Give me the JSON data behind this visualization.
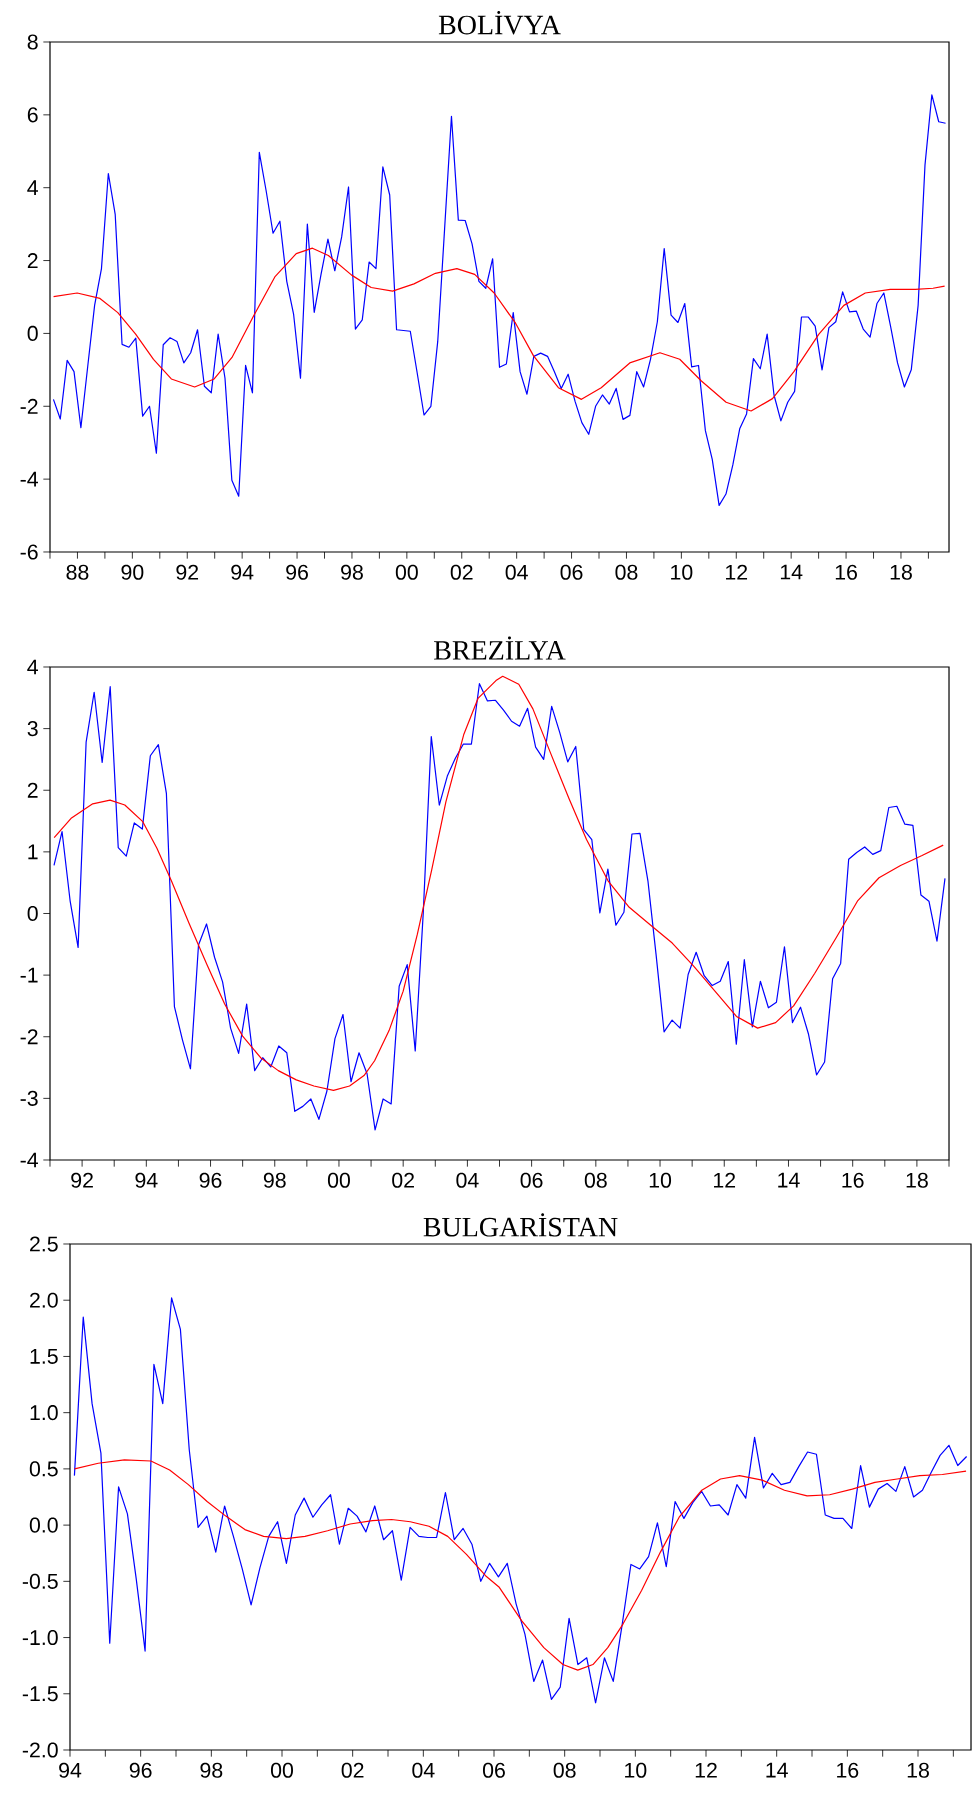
{
  "chart_data": [
    {
      "type": "line",
      "title": "BOLİVYA",
      "x": [
        1987.125,
        1987.375,
        1987.625,
        1987.875,
        1988.125,
        1988.375,
        1988.625,
        1988.875,
        1989.125,
        1989.375,
        1989.625,
        1989.875,
        1990.125,
        1990.375,
        1990.625,
        1990.875,
        1991.125,
        1991.375,
        1991.625,
        1991.875,
        1992.125,
        1992.375,
        1992.625,
        1992.875,
        1993.125,
        1993.375,
        1993.625,
        1993.875,
        1994.125,
        1994.375,
        1994.625,
        1994.875,
        1995.125,
        1995.375,
        1995.625,
        1995.875,
        1996.125,
        1996.375,
        1996.625,
        1996.875,
        1997.125,
        1997.375,
        1997.625,
        1997.875,
        1998.125,
        1998.375,
        1998.625,
        1998.875,
        1999.125,
        1999.375,
        1999.625,
        1999.875,
        2000.125,
        2000.375,
        2000.625,
        2000.875,
        2001.125,
        2001.375,
        2001.625,
        2001.875,
        2002.125,
        2002.375,
        2002.625,
        2002.875,
        2003.125,
        2003.375,
        2003.625,
        2003.875,
        2004.125,
        2004.375,
        2004.625,
        2004.875,
        2005.125,
        2005.375,
        2005.625,
        2005.875,
        2006.125,
        2006.375,
        2006.625,
        2006.875,
        2007.125,
        2007.375,
        2007.625,
        2007.875,
        2008.125,
        2008.375,
        2008.625,
        2008.875,
        2009.125,
        2009.375,
        2009.625,
        2009.875,
        2010.125,
        2010.375,
        2010.625,
        2010.875,
        2011.125,
        2011.375,
        2011.625,
        2011.875,
        2012.125,
        2012.375,
        2012.625,
        2012.875,
        2013.125,
        2013.375,
        2013.625,
        2013.875,
        2014.125,
        2014.375,
        2014.625,
        2014.875,
        2015.125,
        2015.375,
        2015.625,
        2015.875,
        2016.125,
        2016.375,
        2016.625,
        2016.875,
        2017.125,
        2017.375,
        2017.625,
        2017.875,
        2018.125,
        2018.375,
        2018.625,
        2018.875,
        2019.125,
        2019.375,
        2019.625
      ],
      "xlim": [
        1987,
        2019.75
      ],
      "ylim": [
        -6,
        8
      ],
      "xticks": [
        {
          "value": 1987,
          "label": null
        },
        {
          "value": 1988,
          "label": "88"
        },
        {
          "value": 1989,
          "label": null
        },
        {
          "value": 1990,
          "label": "90"
        },
        {
          "value": 1991,
          "label": null
        },
        {
          "value": 1992,
          "label": "92"
        },
        {
          "value": 1993,
          "label": null
        },
        {
          "value": 1994,
          "label": "94"
        },
        {
          "value": 1995,
          "label": null
        },
        {
          "value": 1996,
          "label": "96"
        },
        {
          "value": 1997,
          "label": null
        },
        {
          "value": 1998,
          "label": "98"
        },
        {
          "value": 1999,
          "label": null
        },
        {
          "value": 2000,
          "label": "00"
        },
        {
          "value": 2001,
          "label": null
        },
        {
          "value": 2002,
          "label": "02"
        },
        {
          "value": 2003,
          "label": null
        },
        {
          "value": 2004,
          "label": "04"
        },
        {
          "value": 2005,
          "label": null
        },
        {
          "value": 2006,
          "label": "06"
        },
        {
          "value": 2007,
          "label": null
        },
        {
          "value": 2008,
          "label": "08"
        },
        {
          "value": 2009,
          "label": null
        },
        {
          "value": 2010,
          "label": "10"
        },
        {
          "value": 2011,
          "label": null
        },
        {
          "value": 2012,
          "label": "12"
        },
        {
          "value": 2013,
          "label": null
        },
        {
          "value": 2014,
          "label": "14"
        },
        {
          "value": 2015,
          "label": null
        },
        {
          "value": 2016,
          "label": "16"
        },
        {
          "value": 2017,
          "label": null
        },
        {
          "value": 2018,
          "label": "18"
        },
        {
          "value": 2019,
          "label": null
        }
      ],
      "yticks": [
        -6,
        -4,
        -2,
        0,
        2,
        4,
        6,
        8
      ],
      "series": [
        {
          "color": "#0000ff",
          "values": [
            -1.81,
            -2.35,
            -0.74,
            -1.05,
            -2.59,
            -0.9,
            0.77,
            1.78,
            4.39,
            3.27,
            -0.3,
            -0.38,
            -0.13,
            -2.27,
            -2.0,
            -3.29,
            -0.31,
            -0.12,
            -0.22,
            -0.81,
            -0.53,
            0.1,
            -1.45,
            -1.63,
            -0.02,
            -1.23,
            -4.03,
            -4.47,
            -0.88,
            -1.63,
            4.97,
            3.91,
            2.75,
            3.08,
            1.43,
            0.52,
            -1.23,
            3.0,
            0.58,
            1.63,
            2.59,
            1.72,
            2.65,
            4.02,
            0.12,
            0.37,
            1.96,
            1.78,
            4.57,
            3.8,
            0.1,
            0.08,
            0.06,
            -1.08,
            -2.24,
            -2.0,
            -0.22,
            2.87,
            5.96,
            3.11,
            3.1,
            2.46,
            1.43,
            1.24,
            2.05,
            -0.93,
            -0.84,
            0.57,
            -1.05,
            -1.67,
            -0.63,
            -0.54,
            -0.63,
            -1.05,
            -1.51,
            -1.12,
            -1.86,
            -2.45,
            -2.77,
            -2.0,
            -1.69,
            -1.94,
            -1.51,
            -2.36,
            -2.25,
            -1.05,
            -1.47,
            -0.71,
            0.32,
            2.33,
            0.5,
            0.3,
            0.82,
            -0.92,
            -0.88,
            -2.67,
            -3.46,
            -4.72,
            -4.41,
            -3.61,
            -2.62,
            -2.21,
            -0.69,
            -0.97,
            -0.02,
            -1.69,
            -2.4,
            -1.89,
            -1.59,
            0.45,
            0.45,
            0.2,
            -1.0,
            0.16,
            0.32,
            1.14,
            0.59,
            0.61,
            0.12,
            -0.1,
            0.82,
            1.11,
            0.18,
            -0.81,
            -1.47,
            -1.0,
            0.77,
            4.62,
            6.55,
            5.81,
            5.77
          ]
        },
        {
          "color": "#ff0000",
          "x": [
            1987.13,
            1987.99,
            1988.82,
            1989.47,
            1990.12,
            1990.77,
            1991.42,
            1992.27,
            1992.98,
            1993.63,
            1994.41,
            1995.19,
            1995.97,
            1996.56,
            1997.14,
            1997.99,
            1998.7,
            1999.48,
            2000.26,
            2001.04,
            2001.82,
            2002.47,
            2003.18,
            2003.96,
            2004.61,
            2005.52,
            2006.36,
            2007.08,
            2008.12,
            2009.22,
            2009.94,
            2010.72,
            2011.63,
            2012.54,
            2013.32,
            2014.1,
            2015.01,
            2015.92,
            2016.7,
            2017.61,
            2018.52,
            2019.17,
            2019.59
          ],
          "values": [
            1.01,
            1.11,
            0.96,
            0.57,
            -0.02,
            -0.71,
            -1.25,
            -1.47,
            -1.25,
            -0.66,
            0.47,
            1.55,
            2.19,
            2.34,
            2.14,
            1.6,
            1.26,
            1.16,
            1.36,
            1.65,
            1.78,
            1.62,
            1.11,
            0.28,
            -0.61,
            -1.49,
            -1.81,
            -1.49,
            -0.81,
            -0.53,
            -0.71,
            -1.3,
            -1.89,
            -2.13,
            -1.79,
            -1.05,
            -0.02,
            0.77,
            1.11,
            1.21,
            1.21,
            1.24,
            1.3
          ]
        }
      ]
    },
    {
      "type": "line",
      "title": "BREZİLYA",
      "x": [
        1991.125,
        1991.375,
        1991.625,
        1991.875,
        1992.125,
        1992.375,
        1992.625,
        1992.875,
        1993.125,
        1993.375,
        1993.625,
        1993.875,
        1994.125,
        1994.375,
        1994.625,
        1994.875,
        1995.125,
        1995.375,
        1995.625,
        1995.875,
        1996.125,
        1996.375,
        1996.625,
        1996.875,
        1997.125,
        1997.375,
        1997.625,
        1997.875,
        1998.125,
        1998.375,
        1998.625,
        1998.875,
        1999.125,
        1999.375,
        1999.625,
        1999.875,
        2000.125,
        2000.375,
        2000.625,
        2000.875,
        2001.125,
        2001.375,
        2001.625,
        2001.875,
        2002.125,
        2002.375,
        2002.625,
        2002.875,
        2003.125,
        2003.375,
        2003.625,
        2003.875,
        2004.125,
        2004.375,
        2004.625,
        2004.875,
        2005.125,
        2005.375,
        2005.625,
        2005.875,
        2006.125,
        2006.375,
        2006.625,
        2006.875,
        2007.125,
        2007.375,
        2007.625,
        2007.875,
        2008.125,
        2008.375,
        2008.625,
        2008.875,
        2009.125,
        2009.375,
        2009.625,
        2009.875,
        2010.125,
        2010.375,
        2010.625,
        2010.875,
        2011.125,
        2011.375,
        2011.625,
        2011.875,
        2012.125,
        2012.375,
        2012.625,
        2012.875,
        2013.125,
        2013.375,
        2013.625,
        2013.875,
        2014.125,
        2014.375,
        2014.625,
        2014.875,
        2015.125,
        2015.375,
        2015.625,
        2015.875,
        2016.125,
        2016.375,
        2016.625,
        2016.875,
        2017.125,
        2017.375,
        2017.625,
        2017.875,
        2018.125,
        2018.375,
        2018.625,
        2018.875
      ],
      "xlim": [
        1991,
        2019
      ],
      "ylim": [
        -4,
        4
      ],
      "xticks": [
        {
          "value": 1991,
          "label": null
        },
        {
          "value": 1992,
          "label": "92"
        },
        {
          "value": 1993,
          "label": null
        },
        {
          "value": 1994,
          "label": "94"
        },
        {
          "value": 1995,
          "label": null
        },
        {
          "value": 1996,
          "label": "96"
        },
        {
          "value": 1997,
          "label": null
        },
        {
          "value": 1998,
          "label": "98"
        },
        {
          "value": 1999,
          "label": null
        },
        {
          "value": 2000,
          "label": "00"
        },
        {
          "value": 2001,
          "label": null
        },
        {
          "value": 2002,
          "label": "02"
        },
        {
          "value": 2003,
          "label": null
        },
        {
          "value": 2004,
          "label": "04"
        },
        {
          "value": 2005,
          "label": null
        },
        {
          "value": 2006,
          "label": "06"
        },
        {
          "value": 2007,
          "label": null
        },
        {
          "value": 2008,
          "label": "08"
        },
        {
          "value": 2009,
          "label": null
        },
        {
          "value": 2010,
          "label": "10"
        },
        {
          "value": 2011,
          "label": null
        },
        {
          "value": 2012,
          "label": "12"
        },
        {
          "value": 2013,
          "label": null
        },
        {
          "value": 2014,
          "label": "14"
        },
        {
          "value": 2015,
          "label": null
        },
        {
          "value": 2016,
          "label": "16"
        },
        {
          "value": 2017,
          "label": null
        },
        {
          "value": 2018,
          "label": "18"
        },
        {
          "value": 2019,
          "label": null
        }
      ],
      "yticks": [
        -4,
        -3,
        -2,
        -1,
        0,
        1,
        2,
        3,
        4
      ],
      "series": [
        {
          "color": "#0000ff",
          "values": [
            0.78,
            1.33,
            0.21,
            -0.55,
            2.78,
            3.59,
            2.45,
            3.68,
            1.07,
            0.93,
            1.47,
            1.37,
            2.56,
            2.74,
            1.95,
            -1.51,
            -2.05,
            -2.52,
            -0.51,
            -0.17,
            -0.71,
            -1.11,
            -1.86,
            -2.27,
            -1.47,
            -2.55,
            -2.34,
            -2.49,
            -2.15,
            -2.26,
            -3.21,
            -3.13,
            -3.01,
            -3.34,
            -2.88,
            -2.03,
            -1.64,
            -2.73,
            -2.26,
            -2.6,
            -3.51,
            -3.01,
            -3.09,
            -1.18,
            -0.83,
            -2.23,
            0.01,
            2.87,
            1.76,
            2.23,
            2.52,
            2.75,
            2.75,
            3.73,
            3.45,
            3.46,
            3.3,
            3.12,
            3.04,
            3.33,
            2.7,
            2.5,
            3.36,
            2.94,
            2.46,
            2.71,
            1.36,
            1.2,
            0.01,
            0.72,
            -0.19,
            0.02,
            1.29,
            1.3,
            0.52,
            -0.66,
            -1.92,
            -1.73,
            -1.86,
            -0.99,
            -0.63,
            -1.01,
            -1.17,
            -1.1,
            -0.78,
            -2.12,
            -0.75,
            -1.84,
            -1.1,
            -1.53,
            -1.44,
            -0.54,
            -1.77,
            -1.52,
            -1.96,
            -2.62,
            -2.41,
            -1.06,
            -0.81,
            0.88,
            0.99,
            1.08,
            0.96,
            1.02,
            1.72,
            1.74,
            1.45,
            1.43,
            0.3,
            0.2,
            -0.45,
            0.57
          ]
        },
        {
          "color": "#ff0000",
          "x": [
            1991.13,
            1991.67,
            1992.33,
            1992.87,
            1993.33,
            1993.89,
            1994.33,
            1994.78,
            1995.33,
            1995.89,
            1996.44,
            1997.0,
            1997.56,
            1998.11,
            1998.67,
            1999.22,
            1999.83,
            2000.33,
            2000.78,
            2001.11,
            2001.56,
            2002.0,
            2002.44,
            2002.89,
            2003.33,
            2003.89,
            2004.33,
            2004.89,
            2005.1,
            2005.6,
            2006.04,
            2006.6,
            2007.16,
            2007.71,
            2008.38,
            2009.04,
            2009.71,
            2010.38,
            2011.04,
            2011.71,
            2012.38,
            2013.04,
            2013.6,
            2014.16,
            2014.82,
            2015.49,
            2016.16,
            2016.82,
            2017.49,
            2018.16,
            2018.82
          ],
          "values": [
            1.23,
            1.55,
            1.78,
            1.84,
            1.76,
            1.49,
            1.06,
            0.53,
            -0.16,
            -0.83,
            -1.47,
            -1.99,
            -2.34,
            -2.55,
            -2.7,
            -2.8,
            -2.87,
            -2.8,
            -2.63,
            -2.39,
            -1.9,
            -1.26,
            -0.34,
            0.71,
            1.81,
            2.91,
            3.49,
            3.78,
            3.85,
            3.72,
            3.32,
            2.59,
            1.87,
            1.2,
            0.53,
            0.1,
            -0.19,
            -0.48,
            -0.85,
            -1.26,
            -1.67,
            -1.86,
            -1.77,
            -1.5,
            -0.97,
            -0.39,
            0.21,
            0.58,
            0.78,
            0.94,
            1.11
          ]
        }
      ]
    },
    {
      "type": "line",
      "title": "BULGARİSTAN",
      "x": [
        1994.125,
        1994.375,
        1994.625,
        1994.875,
        1995.125,
        1995.375,
        1995.625,
        1995.875,
        1996.125,
        1996.375,
        1996.625,
        1996.875,
        1997.125,
        1997.375,
        1997.625,
        1997.875,
        1998.125,
        1998.375,
        1998.625,
        1998.875,
        1999.125,
        1999.375,
        1999.625,
        1999.875,
        2000.125,
        2000.375,
        2000.625,
        2000.875,
        2001.125,
        2001.375,
        2001.625,
        2001.875,
        2002.125,
        2002.375,
        2002.625,
        2002.875,
        2003.125,
        2003.375,
        2003.625,
        2003.875,
        2004.125,
        2004.375,
        2004.625,
        2004.875,
        2005.125,
        2005.375,
        2005.625,
        2005.875,
        2006.125,
        2006.375,
        2006.625,
        2006.875,
        2007.125,
        2007.375,
        2007.625,
        2007.875,
        2008.125,
        2008.375,
        2008.625,
        2008.875,
        2009.125,
        2009.375,
        2009.625,
        2009.875,
        2010.125,
        2010.375,
        2010.625,
        2010.875,
        2011.125,
        2011.375,
        2011.625,
        2011.875,
        2012.125,
        2012.375,
        2012.625,
        2012.875,
        2013.125,
        2013.375,
        2013.625,
        2013.875,
        2014.125,
        2014.375,
        2014.625,
        2014.875,
        2015.125,
        2015.375,
        2015.625,
        2015.875,
        2016.125,
        2016.375,
        2016.625,
        2016.875,
        2017.125,
        2017.375,
        2017.625,
        2017.875,
        2018.125,
        2018.375,
        2018.625,
        2018.875,
        2019.125,
        2019.375
      ],
      "xlim": [
        1994,
        2019.5
      ],
      "ylim": [
        -2,
        2.5
      ],
      "xticks": [
        {
          "value": 1994,
          "label": "94"
        },
        {
          "value": 1995,
          "label": null
        },
        {
          "value": 1996,
          "label": "96"
        },
        {
          "value": 1997,
          "label": null
        },
        {
          "value": 1998,
          "label": "98"
        },
        {
          "value": 1999,
          "label": null
        },
        {
          "value": 2000,
          "label": "00"
        },
        {
          "value": 2001,
          "label": null
        },
        {
          "value": 2002,
          "label": "02"
        },
        {
          "value": 2003,
          "label": null
        },
        {
          "value": 2004,
          "label": "04"
        },
        {
          "value": 2005,
          "label": null
        },
        {
          "value": 2006,
          "label": "06"
        },
        {
          "value": 2007,
          "label": null
        },
        {
          "value": 2008,
          "label": "08"
        },
        {
          "value": 2009,
          "label": null
        },
        {
          "value": 2010,
          "label": "10"
        },
        {
          "value": 2011,
          "label": null
        },
        {
          "value": 2012,
          "label": "12"
        },
        {
          "value": 2013,
          "label": null
        },
        {
          "value": 2014,
          "label": "14"
        },
        {
          "value": 2015,
          "label": null
        },
        {
          "value": 2016,
          "label": "16"
        },
        {
          "value": 2017,
          "label": null
        },
        {
          "value": 2018,
          "label": "18"
        },
        {
          "value": 2019,
          "label": null
        }
      ],
      "yticks": [
        {
          "value": -2,
          "label": "-2.0"
        },
        -1.5,
        {
          "value": -1,
          "label": "-1.0"
        },
        -0.5,
        {
          "value": 0,
          "label": "0.0"
        },
        0.5,
        {
          "value": 1,
          "label": "1.0"
        },
        1.5,
        {
          "value": 2,
          "label": "2.0"
        },
        2.5
      ],
      "series": [
        {
          "color": "#0000ff",
          "values": [
            0.44,
            1.85,
            1.08,
            0.64,
            -1.05,
            0.34,
            0.1,
            -0.48,
            -1.12,
            1.43,
            1.08,
            2.02,
            1.74,
            0.67,
            -0.02,
            0.08,
            -0.24,
            0.17,
            -0.1,
            -0.39,
            -0.71,
            -0.38,
            -0.1,
            0.03,
            -0.34,
            0.09,
            0.24,
            0.07,
            0.18,
            0.27,
            -0.17,
            0.15,
            0.08,
            -0.06,
            0.17,
            -0.13,
            -0.05,
            -0.49,
            -0.02,
            -0.1,
            -0.11,
            -0.11,
            0.29,
            -0.13,
            -0.03,
            -0.17,
            -0.5,
            -0.34,
            -0.46,
            -0.34,
            -0.7,
            -0.97,
            -1.39,
            -1.2,
            -1.55,
            -1.44,
            -0.83,
            -1.24,
            -1.18,
            -1.58,
            -1.18,
            -1.39,
            -0.89,
            -0.35,
            -0.39,
            -0.28,
            0.02,
            -0.37,
            0.21,
            0.06,
            0.2,
            0.3,
            0.17,
            0.18,
            0.09,
            0.36,
            0.24,
            0.78,
            0.33,
            0.46,
            0.36,
            0.38,
            0.52,
            0.65,
            0.63,
            0.09,
            0.06,
            0.06,
            -0.03,
            0.53,
            0.16,
            0.32,
            0.37,
            0.3,
            0.52,
            0.25,
            0.31,
            0.47,
            0.62,
            0.71,
            0.53,
            0.61
          ]
        },
        {
          "color": "#ff0000",
          "x": [
            1994.13,
            1994.8,
            1995.54,
            1996.29,
            1996.82,
            1997.35,
            1997.88,
            1998.41,
            1998.95,
            1999.48,
            2000.12,
            2000.65,
            2001.29,
            2001.93,
            2002.56,
            2003.1,
            2003.63,
            2004.16,
            2004.69,
            2005.22,
            2005.76,
            2006.14,
            2006.78,
            2007.41,
            2007.95,
            2008.37,
            2008.8,
            2009.22,
            2009.65,
            2010.18,
            2010.71,
            2011.24,
            2011.88,
            2012.41,
            2012.95,
            2013.59,
            2014.22,
            2014.86,
            2015.5,
            2016.14,
            2016.78,
            2017.41,
            2018.05,
            2018.69,
            2019.36
          ],
          "values": [
            0.5,
            0.55,
            0.58,
            0.57,
            0.49,
            0.36,
            0.21,
            0.08,
            -0.04,
            -0.1,
            -0.12,
            -0.1,
            -0.05,
            0.01,
            0.04,
            0.05,
            0.03,
            -0.01,
            -0.1,
            -0.26,
            -0.45,
            -0.55,
            -0.85,
            -1.09,
            -1.24,
            -1.29,
            -1.24,
            -1.09,
            -0.88,
            -0.58,
            -0.24,
            0.07,
            0.31,
            0.41,
            0.44,
            0.4,
            0.31,
            0.26,
            0.27,
            0.32,
            0.38,
            0.41,
            0.44,
            0.45,
            0.48
          ]
        }
      ]
    }
  ]
}
